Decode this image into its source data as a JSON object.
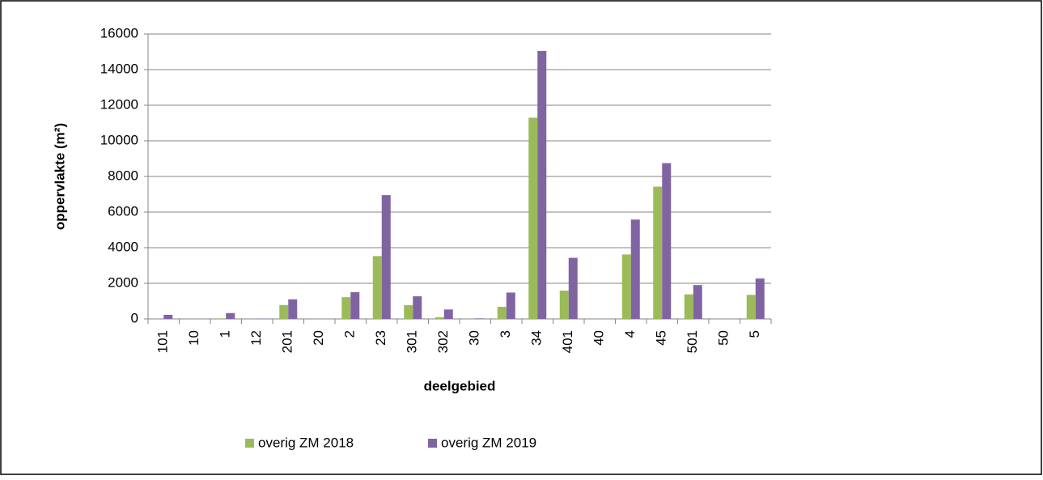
{
  "chart_data": {
    "type": "bar",
    "x_label": "deelgebied",
    "y_label": "oppervlakte (m²)",
    "categories": [
      "101",
      "10",
      "1",
      "12",
      "201",
      "20",
      "2",
      "23",
      "301",
      "302",
      "30",
      "3",
      "34",
      "401",
      "40",
      "4",
      "45",
      "501",
      "50",
      "5"
    ],
    "series": [
      {
        "name": "overig ZM 2018",
        "color": "#9bbb59",
        "values": [
          0,
          0,
          30,
          0,
          780,
          0,
          1220,
          3530,
          770,
          100,
          0,
          680,
          11300,
          1590,
          0,
          3620,
          7430,
          1380,
          0,
          1350
        ]
      },
      {
        "name": "overig ZM 2019",
        "color": "#8064a2",
        "values": [
          230,
          0,
          330,
          20,
          1100,
          0,
          1500,
          6950,
          1270,
          530,
          30,
          1480,
          15050,
          3430,
          0,
          5580,
          8750,
          1900,
          0,
          2270
        ]
      }
    ],
    "ylim": [
      0,
      16000
    ],
    "yticks": [
      0,
      2000,
      4000,
      6000,
      8000,
      10000,
      12000,
      14000,
      16000
    ],
    "grid": true,
    "legend": "bottom"
  }
}
